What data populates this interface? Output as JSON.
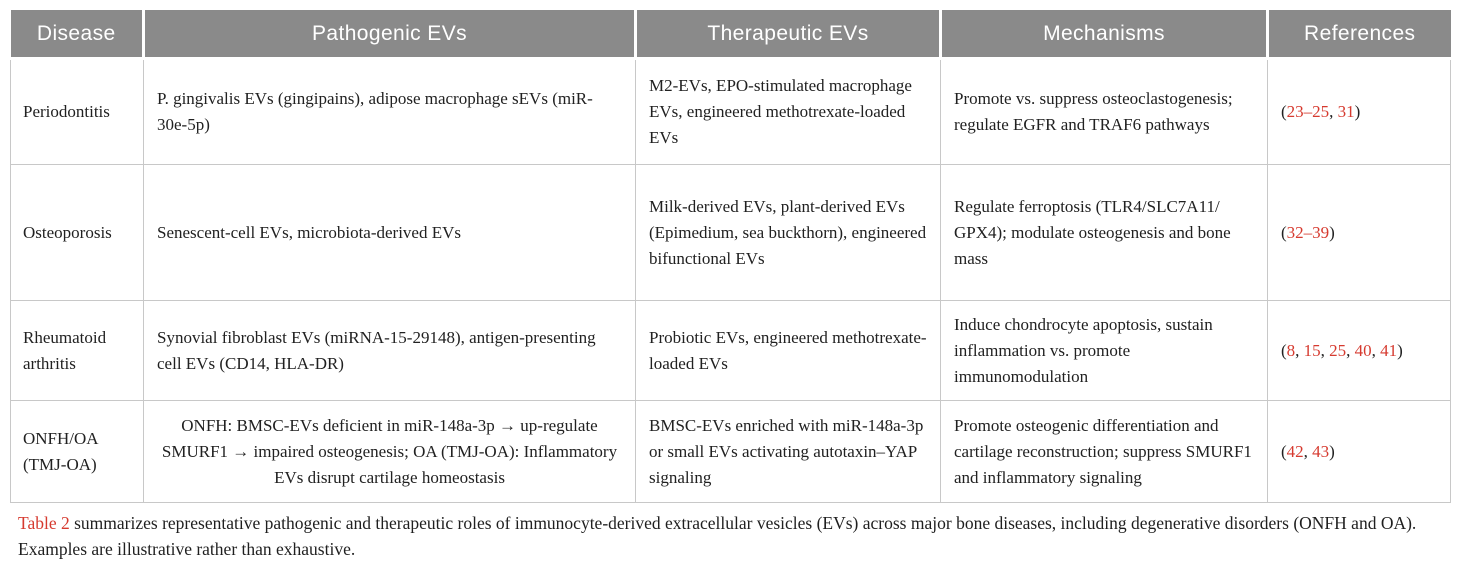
{
  "colors": {
    "header_bg": "#8a8a8a",
    "header_text": "#ffffff",
    "body_text": "#212121",
    "border": "#c8c8c8",
    "citation_red": "#d63a2f"
  },
  "table": {
    "columns": [
      "Disease",
      "Pathogenic EVs",
      "Therapeutic EVs",
      "Mechanisms",
      "References"
    ],
    "rows": [
      {
        "disease": "Periodontitis",
        "pathogenic": "P. gingivalis EVs (gingipains), adipose macrophage sEVs (miR-30e-5p)",
        "therapeutic": "M2-EVs, EPO-stimulated macrophage EVs, engineered methotrexate-loaded EVs",
        "mechanisms": "Promote vs. suppress osteoclastogenesis; regulate EGFR and TRAF6 pathways",
        "references": [
          {
            "t": "("
          },
          {
            "t": "23–25",
            "link": true
          },
          {
            "t": ", "
          },
          {
            "t": "31",
            "link": true
          },
          {
            "t": ")"
          }
        ]
      },
      {
        "disease": "Osteoporosis",
        "pathogenic": "Senescent-cell EVs, microbiota-derived EVs",
        "therapeutic": "Milk-derived EVs, plant-derived EVs (Epimedium, sea buckthorn), engineered bifunctional EVs",
        "mechanisms": "Regulate ferroptosis (TLR4/SLC7A11/ GPX4); modulate osteogenesis and bone mass",
        "references": [
          {
            "t": "("
          },
          {
            "t": "32–39",
            "link": true
          },
          {
            "t": ")"
          }
        ]
      },
      {
        "disease": "Rheumatoid arthritis",
        "pathogenic": "Synovial fibroblast EVs (miRNA-15-29148), antigen-presenting cell EVs (CD14, HLA-DR)",
        "therapeutic": "Probiotic EVs, engineered methotrexate-loaded EVs",
        "mechanisms": "Induce chondrocyte apoptosis, sustain inflammation vs. promote immunomodulation",
        "references": [
          {
            "t": "("
          },
          {
            "t": "8",
            "link": true
          },
          {
            "t": ", "
          },
          {
            "t": "15",
            "link": true
          },
          {
            "t": ", "
          },
          {
            "t": "25",
            "link": true
          },
          {
            "t": ", "
          },
          {
            "t": "40",
            "link": true
          },
          {
            "t": ", "
          },
          {
            "t": "41",
            "link": true
          },
          {
            "t": ")"
          }
        ]
      },
      {
        "disease": "ONFH/OA (TMJ-OA)",
        "pathogenic": "ONFH: BMSC-EVs deficient in miR-148a-3p → up-regulate SMURF1 → impaired osteogenesis; OA (TMJ-OA): Inflammatory EVs disrupt cartilage homeostasis",
        "therapeutic": "BMSC-EVs enriched with miR-148a-3p or small EVs activating autotaxin–YAP signaling",
        "mechanisms": "Promote osteogenic differentiation and cartilage reconstruction; suppress SMURF1 and inflammatory signaling",
        "references": [
          {
            "t": "("
          },
          {
            "t": "42",
            "link": true
          },
          {
            "t": ", "
          },
          {
            "t": "43",
            "link": true
          },
          {
            "t": ")"
          }
        ]
      }
    ]
  },
  "caption": {
    "label": "Table 2",
    "text": " summarizes representative pathogenic and therapeutic roles of immunocyte-derived extracellular vesicles (EVs) across major bone diseases, including degenerative disorders (ONFH and OA). Examples are illustrative rather than exhaustive."
  }
}
